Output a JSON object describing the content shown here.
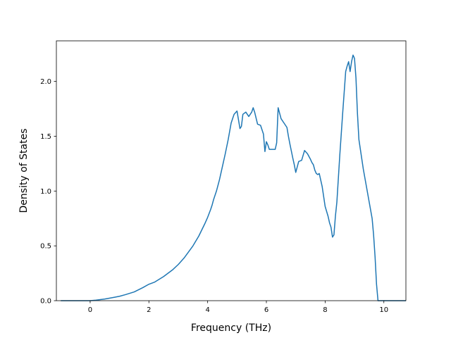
{
  "chart_data": {
    "type": "line",
    "title": "",
    "xlabel": "Frequency (THz)",
    "ylabel": "Density of States",
    "xlim": [
      -1.15,
      10.75
    ],
    "ylim": [
      0,
      2.37
    ],
    "xticks": [
      0,
      2,
      4,
      6,
      8,
      10
    ],
    "yticks": [
      0.0,
      0.5,
      1.0,
      1.5,
      2.0
    ],
    "xtick_labels": [
      "0",
      "2",
      "4",
      "6",
      "8",
      "10"
    ],
    "ytick_labels": [
      "0.0",
      "0.5",
      "1.0",
      "1.5",
      "2.0"
    ],
    "grid": false,
    "legend": "none",
    "line_color": "#1f77b4",
    "series": [
      {
        "x": [
          -1.0,
          -0.5,
          0.0,
          0.2,
          0.5,
          0.8,
          1.0,
          1.2,
          1.5,
          1.8,
          2.0,
          2.2,
          2.5,
          2.8,
          3.0,
          3.2,
          3.5,
          3.7,
          3.9,
          4.0,
          4.1,
          4.15,
          4.2,
          4.25,
          4.3,
          4.4,
          4.5,
          4.6,
          4.7,
          4.8,
          4.85,
          4.9,
          5.0,
          5.1,
          5.15,
          5.2,
          5.3,
          5.4,
          5.5,
          5.55,
          5.6,
          5.7,
          5.8,
          5.9,
          5.95,
          6.0,
          6.05,
          6.1,
          6.2,
          6.3,
          6.35,
          6.4,
          6.5,
          6.6,
          6.7,
          6.75,
          6.8,
          6.9,
          6.95,
          7.0,
          7.05,
          7.1,
          7.2,
          7.3,
          7.4,
          7.5,
          7.55,
          7.6,
          7.65,
          7.7,
          7.75,
          7.8,
          7.9,
          8.0,
          8.1,
          8.15,
          8.2,
          8.25,
          8.3,
          8.35,
          8.4,
          8.5,
          8.6,
          8.7,
          8.75,
          8.8,
          8.85,
          8.9,
          8.95,
          9.0,
          9.05,
          9.1,
          9.15,
          9.2,
          9.3,
          9.4,
          9.5,
          9.6,
          9.65,
          9.7,
          9.75,
          9.8,
          10.0,
          10.5,
          10.75
        ],
        "y": [
          0.0,
          0.0,
          0.0,
          0.005,
          0.015,
          0.03,
          0.04,
          0.055,
          0.08,
          0.12,
          0.15,
          0.17,
          0.22,
          0.28,
          0.33,
          0.39,
          0.5,
          0.59,
          0.7,
          0.76,
          0.83,
          0.87,
          0.92,
          0.96,
          1.0,
          1.1,
          1.22,
          1.34,
          1.47,
          1.62,
          1.66,
          1.7,
          1.73,
          1.57,
          1.59,
          1.7,
          1.72,
          1.68,
          1.72,
          1.76,
          1.72,
          1.61,
          1.6,
          1.52,
          1.36,
          1.45,
          1.42,
          1.38,
          1.38,
          1.38,
          1.44,
          1.76,
          1.66,
          1.62,
          1.58,
          1.5,
          1.43,
          1.3,
          1.24,
          1.17,
          1.22,
          1.27,
          1.28,
          1.37,
          1.34,
          1.29,
          1.26,
          1.24,
          1.19,
          1.16,
          1.15,
          1.16,
          1.04,
          0.86,
          0.77,
          0.71,
          0.67,
          0.58,
          0.6,
          0.77,
          0.9,
          1.33,
          1.72,
          2.09,
          2.14,
          2.18,
          2.09,
          2.18,
          2.24,
          2.21,
          2.03,
          1.71,
          1.47,
          1.38,
          1.2,
          1.05,
          0.9,
          0.75,
          0.6,
          0.4,
          0.15,
          0.0,
          0.0,
          0.0,
          0.0
        ]
      }
    ]
  }
}
